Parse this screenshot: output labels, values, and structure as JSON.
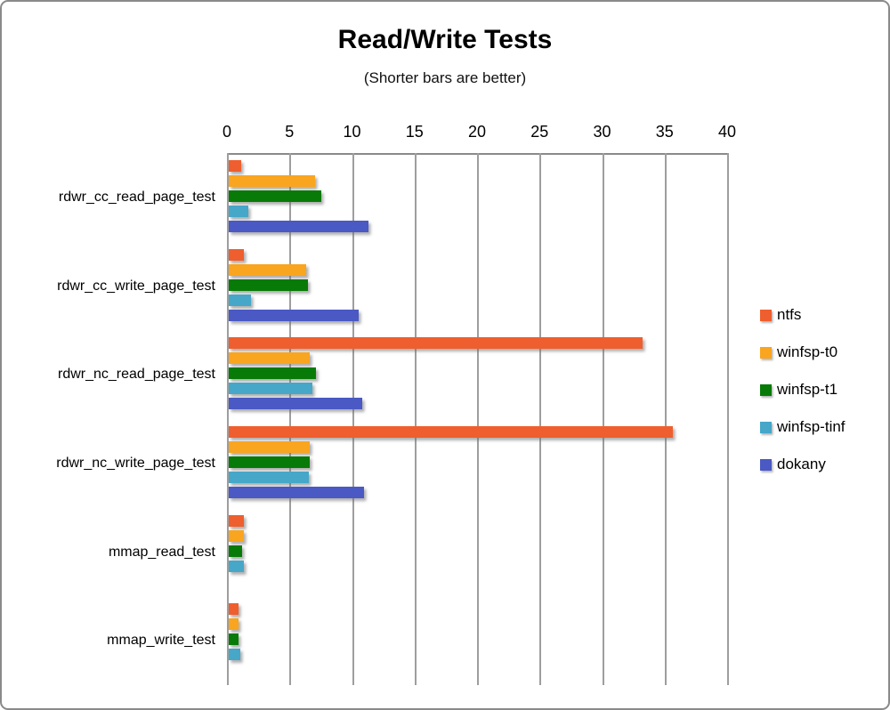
{
  "title": "Read/Write Tests",
  "subtitle": "(Shorter bars are better)",
  "chart_data": {
    "type": "bar",
    "orientation": "horizontal",
    "title": "Read/Write Tests",
    "subtitle": "(Shorter bars are better)",
    "categories": [
      "rdwr_cc_read_page_test",
      "rdwr_cc_write_page_test",
      "rdwr_nc_read_page_test",
      "rdwr_nc_write_page_test",
      "mmap_read_test",
      "mmap_write_test"
    ],
    "series": [
      {
        "name": "ntfs",
        "color": "#EF5E2E",
        "values": [
          1.0,
          1.2,
          33.1,
          35.5,
          1.2,
          0.8
        ]
      },
      {
        "name": "winfsp-t0",
        "color": "#F9A51F",
        "values": [
          6.9,
          6.2,
          6.5,
          6.5,
          1.2,
          0.8
        ]
      },
      {
        "name": "winfsp-t1",
        "color": "#087A08",
        "values": [
          7.4,
          6.3,
          7.0,
          6.5,
          1.1,
          0.8
        ]
      },
      {
        "name": "winfsp-tinf",
        "color": "#46A7C8",
        "values": [
          1.6,
          1.8,
          6.7,
          6.4,
          1.2,
          0.9
        ]
      },
      {
        "name": "dokany",
        "color": "#4A59C4",
        "values": [
          11.2,
          10.4,
          10.7,
          10.8,
          null,
          null
        ]
      }
    ],
    "xlim": [
      0,
      40
    ],
    "xticks": [
      0,
      5,
      10,
      15,
      20,
      25,
      30,
      35,
      40
    ],
    "grid": true,
    "legend_position": "right",
    "grid_color": "#9e9e9e"
  }
}
